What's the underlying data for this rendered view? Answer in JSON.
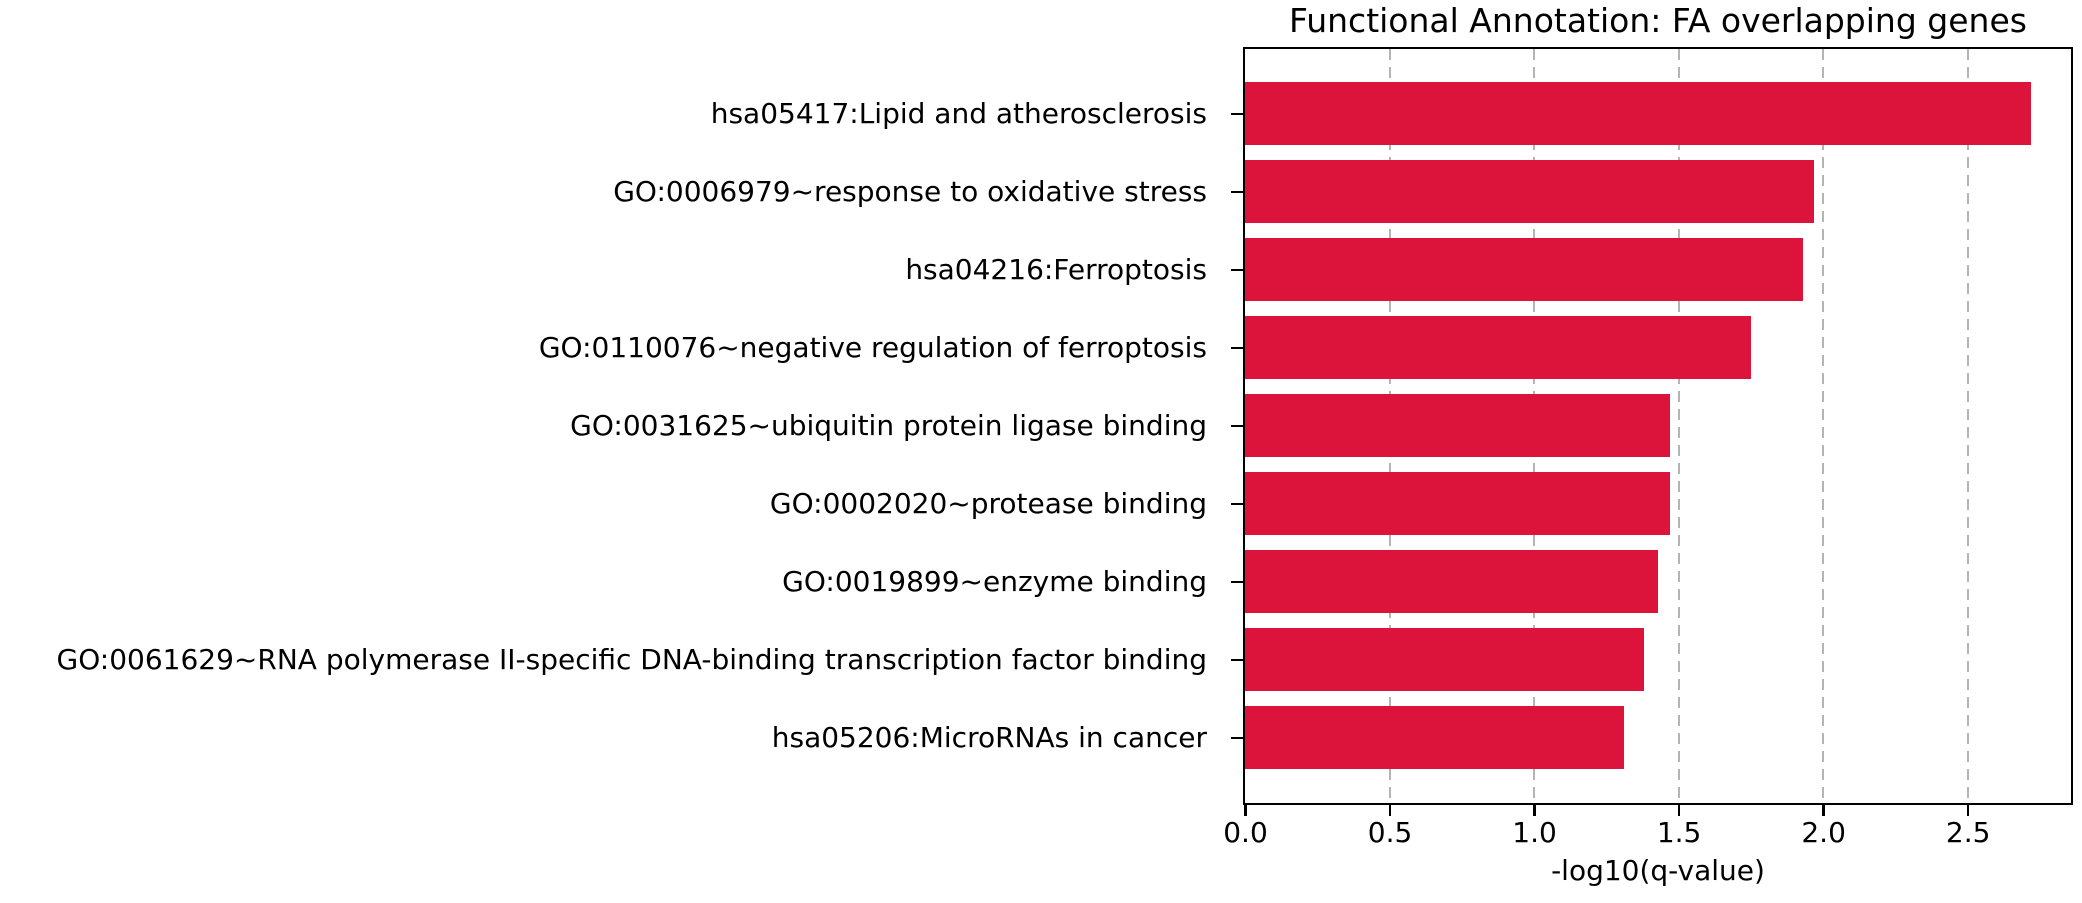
{
  "chart_data": {
    "type": "bar",
    "orientation": "horizontal",
    "title": "Functional Annotation: FA overlapping genes",
    "xlabel": "-log10(q-value)",
    "ylabel": "",
    "categories": [
      "hsa05417:Lipid and atherosclerosis",
      "GO:0006979~response to oxidative stress",
      "hsa04216:Ferroptosis",
      "GO:0110076~negative regulation of ferroptosis",
      "GO:0031625~ubiquitin protein ligase binding",
      "GO:0002020~protease binding",
      "GO:0019899~enzyme binding",
      "GO:0061629~RNA polymerase II-specific DNA-binding transcription factor binding",
      "hsa05206:MicroRNAs in cancer"
    ],
    "values": [
      2.72,
      1.97,
      1.93,
      1.75,
      1.47,
      1.47,
      1.43,
      1.38,
      1.31
    ],
    "xlim": [
      0,
      2.854
    ],
    "xticks": [
      0.0,
      0.5,
      1.0,
      1.5,
      2.0,
      2.5
    ],
    "xtick_labels": [
      "0.0",
      "0.5",
      "1.0",
      "1.5",
      "2.0",
      "2.5"
    ],
    "grid": true,
    "grid_axis": "x",
    "grid_style": "dashed",
    "legend": "none",
    "bar_color": "#dc143c",
    "grid_color": "#b4b4b4",
    "axis_color": "#000000"
  }
}
